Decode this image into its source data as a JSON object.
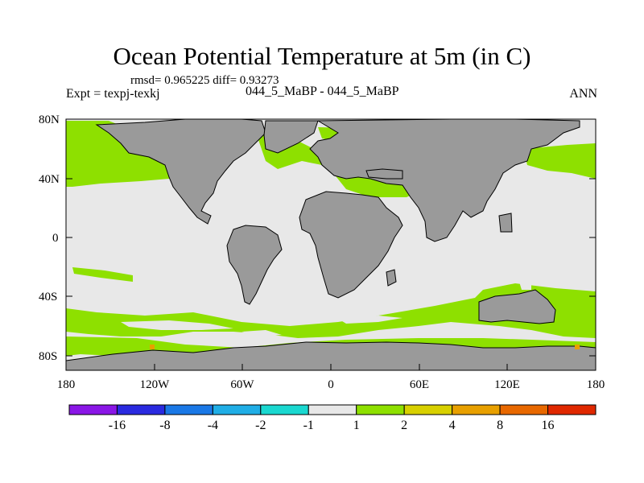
{
  "title": "Ocean Potential Temperature at 5m (in C)",
  "stats": "rmsd= 0.965225 diff= 0.93273",
  "left_label": "Expt = texpj-texkj",
  "center_label": "044_5_MaBP - 044_5_MaBP",
  "right_label": "ANN",
  "lat_ticks": [
    "80N",
    "40N",
    "0",
    "40S",
    "80S"
  ],
  "lon_ticks": [
    "180",
    "120W",
    "60W",
    "0",
    "60E",
    "120E",
    "180"
  ],
  "colorbar": {
    "colors": [
      "#8a16e6",
      "#2a2ae0",
      "#1a78e6",
      "#20aee6",
      "#1ad8d0",
      "#e8e8e8",
      "#8ee000",
      "#d8d000",
      "#e8a000",
      "#e86800",
      "#e02800"
    ],
    "labels": [
      "-16",
      "-8",
      "-4",
      "-2",
      "-1",
      "1",
      "2",
      "4",
      "8",
      "16"
    ]
  },
  "legend_colors": {
    "land": "#9a9a9a",
    "ocean": "#e8e8e8",
    "warm": "#8ee000"
  }
}
